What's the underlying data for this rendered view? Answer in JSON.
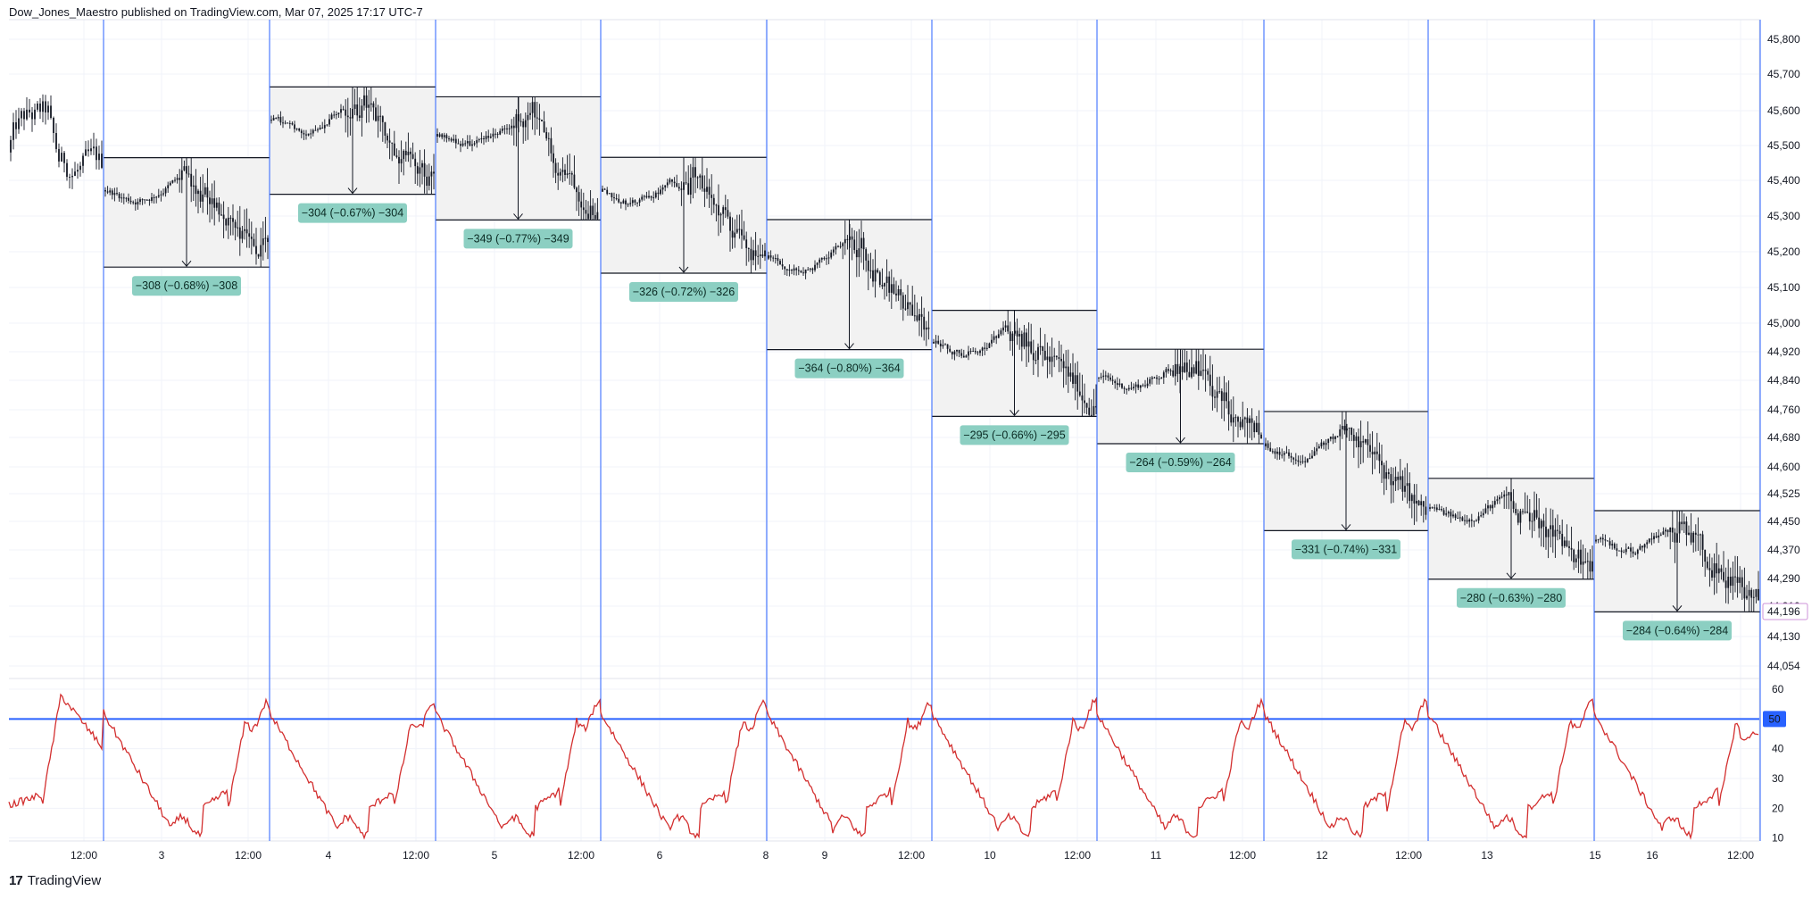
{
  "header": {
    "text": "Dow_Jones_Maestro published on TradingView.com, Mar 07, 2025 17:17 UTC-7"
  },
  "brand": {
    "logo": "17",
    "name": "TradingView"
  },
  "colors": {
    "grid": "#f0f3fa",
    "session_line": "#2962ff",
    "candle": "#131722",
    "box_fill": "#f2f2f2",
    "label_bg": "#8ccfc2",
    "osc_line": "#d32f2f",
    "level_line": "#2962ff",
    "price_tag": "#ce93d8"
  },
  "chart_data": [
    {
      "type": "line",
      "title": "",
      "y_ticks": [
        "45,800",
        "45,700",
        "45,600",
        "45,500",
        "45,400",
        "45,300",
        "45,200",
        "45,100",
        "45,000",
        "44,920",
        "44,840",
        "44,760",
        "44,680",
        "44,600",
        "44,525",
        "44,450",
        "44,370",
        "44,290",
        "44,210",
        "44,130",
        "44,054"
      ],
      "last_price": "44,196",
      "x_ticks": [
        "12:00",
        "3",
        "12:00",
        "4",
        "12:00",
        "5",
        "12:00",
        "6",
        "8",
        "9",
        "12:00",
        "10",
        "12:00",
        "11",
        "12:00",
        "12",
        "12:00",
        "13",
        "15",
        "16",
        "12:00"
      ],
      "session_boxes": [
        {
          "open": 45465,
          "close": 45157,
          "label": "−308 (−0.68%) −308"
        },
        {
          "open": 45665,
          "close": 45361,
          "label": "−304 (−0.67%) −304"
        },
        {
          "open": 45638,
          "close": 45289,
          "label": "−349 (−0.77%) −349"
        },
        {
          "open": 45466,
          "close": 45140,
          "label": "−326 (−0.72%) −326"
        },
        {
          "open": 45290,
          "close": 44926,
          "label": "−364 (−0.80%) −364"
        },
        {
          "open": 45036,
          "close": 44741,
          "label": "−295 (−0.66%) −295"
        },
        {
          "open": 44927,
          "close": 44663,
          "label": "−264 (−0.59%) −264"
        },
        {
          "open": 44755,
          "close": 44424,
          "label": "−331 (−0.74%) −331"
        },
        {
          "open": 44568,
          "close": 44288,
          "label": "−280 (−0.63%) −280"
        },
        {
          "open": 44479,
          "close": 44195,
          "label": "−284 (−0.64%) −284"
        }
      ]
    },
    {
      "type": "line",
      "y_ticks": [
        "60",
        "50",
        "40",
        "30",
        "20",
        "10"
      ],
      "ylim": [
        9,
        63
      ],
      "level": 50,
      "level_label": "50",
      "session_profile": {
        "start": 21,
        "peak_early": 58,
        "trough": 14,
        "late_high": 48
      }
    }
  ]
}
